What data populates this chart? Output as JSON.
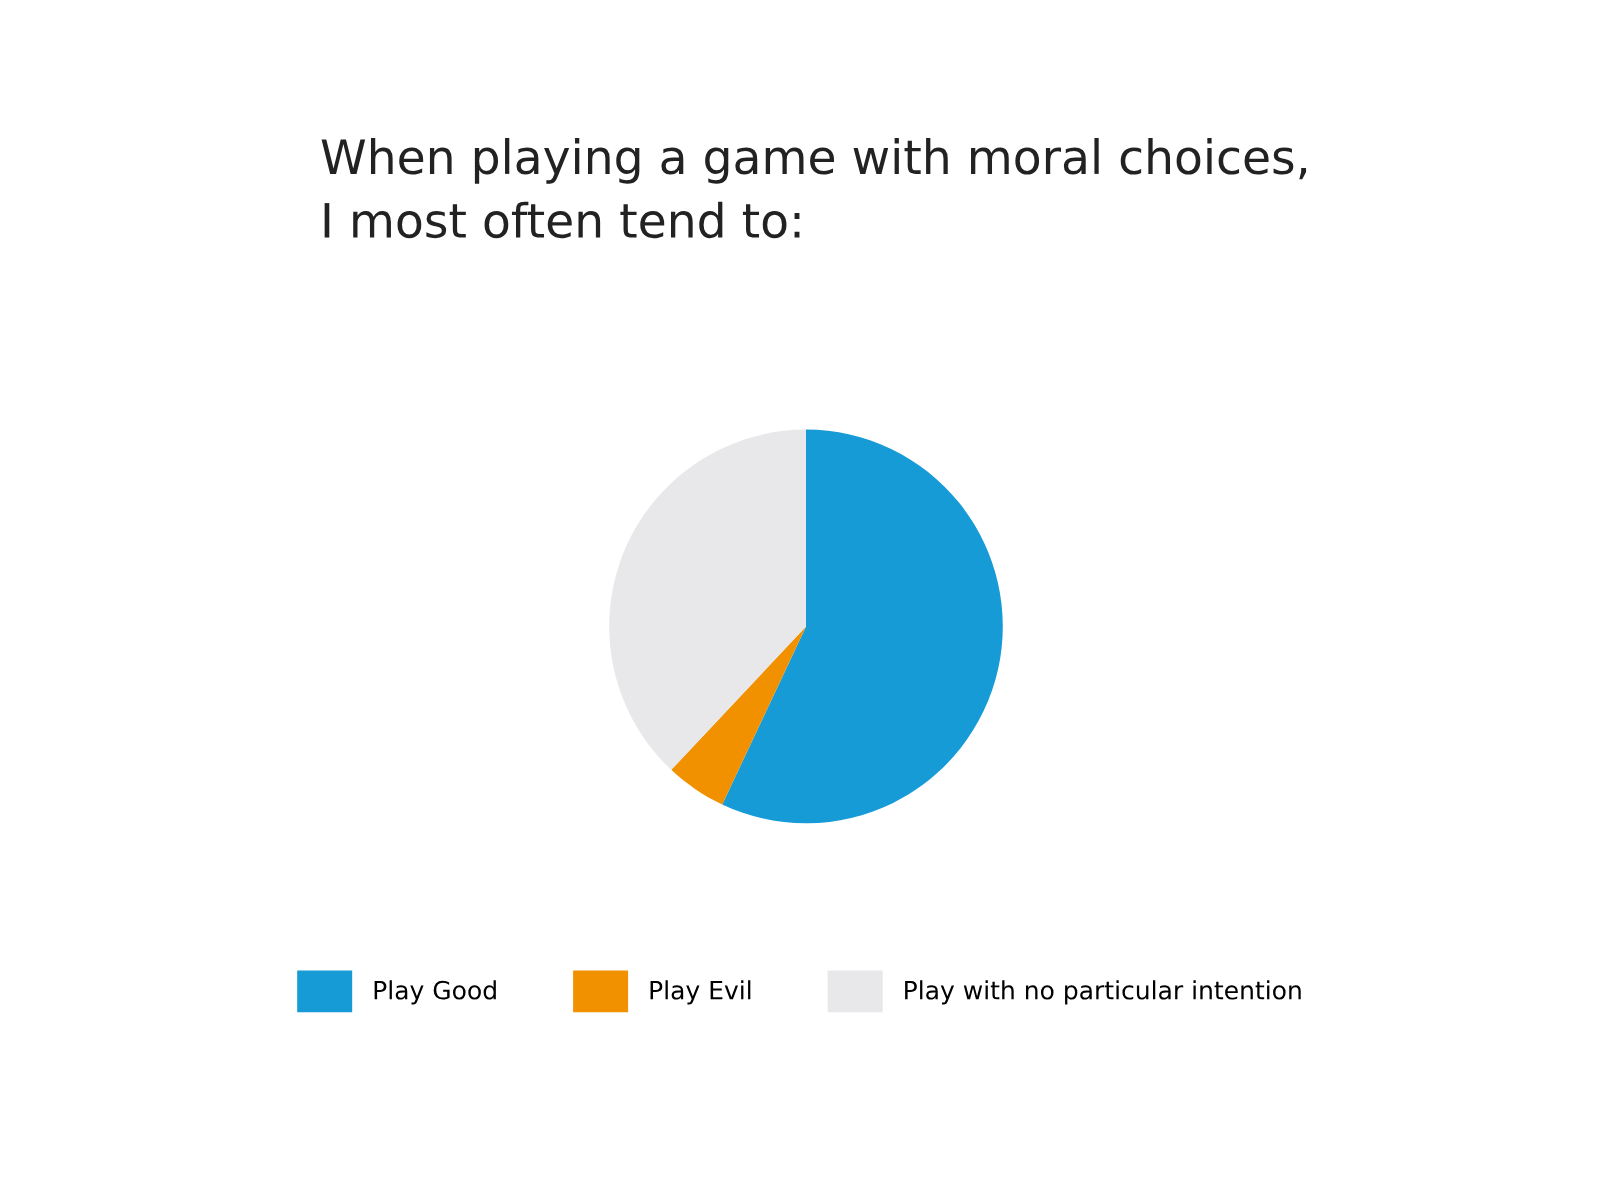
{
  "chart_data": {
    "type": "pie",
    "title": "When playing a game with moral choices,\nI most often tend to:",
    "categories": [
      "Play Good",
      "Play Evil",
      "Play with no particular intention"
    ],
    "values": [
      57,
      5,
      38
    ],
    "colors": [
      "#179bd7",
      "#f29100",
      "#e8e8ea"
    ],
    "legend": "bottom"
  }
}
